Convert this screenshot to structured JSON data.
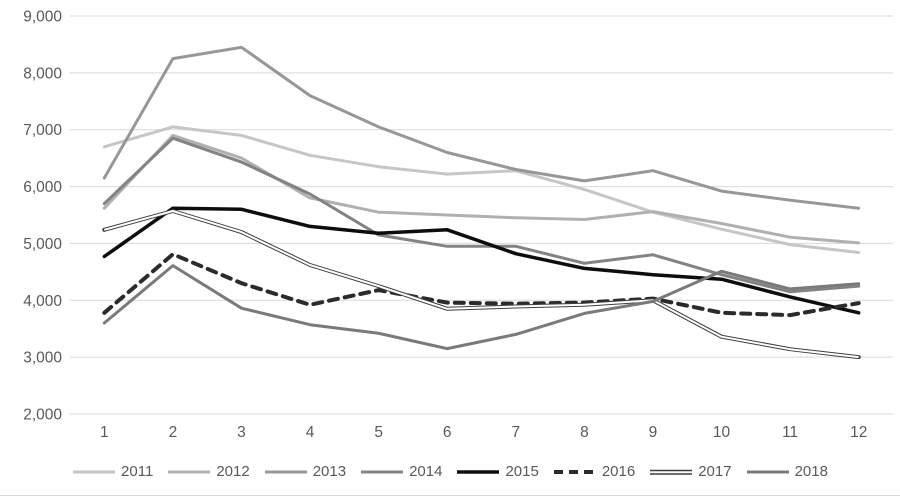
{
  "chart_data": {
    "type": "line",
    "title": "",
    "xlabel": "",
    "ylabel": "",
    "grid": "horizontal",
    "legend_position": "bottom",
    "x_categories": [
      "1",
      "2",
      "3",
      "4",
      "5",
      "6",
      "7",
      "8",
      "9",
      "10",
      "11",
      "12"
    ],
    "y_axis": {
      "min": 2000,
      "max": 9000,
      "step": 1000,
      "tick_labels": [
        "2,000",
        "3,000",
        "4,000",
        "5,000",
        "6,000",
        "7,000",
        "8,000",
        "9,000"
      ]
    },
    "series": [
      {
        "name": "2011",
        "color": "#c6c6c6",
        "style": "solid",
        "width": 3,
        "values": [
          6700,
          7050,
          6900,
          6550,
          6350,
          6220,
          6280,
          5950,
          5550,
          5250,
          4980,
          4840
        ]
      },
      {
        "name": "2012",
        "color": "#b0b0b0",
        "style": "solid",
        "width": 3,
        "values": [
          5620,
          6900,
          6500,
          5800,
          5550,
          5500,
          5450,
          5420,
          5560,
          5350,
          5110,
          5010
        ]
      },
      {
        "name": "2013",
        "color": "#979797",
        "style": "solid",
        "width": 3,
        "values": [
          6150,
          8250,
          8450,
          7600,
          7050,
          6600,
          6300,
          6100,
          6280,
          5920,
          5760,
          5620
        ]
      },
      {
        "name": "2014",
        "color": "#838383",
        "style": "solid",
        "width": 3,
        "values": [
          5700,
          6850,
          6430,
          5870,
          5150,
          4950,
          4950,
          4650,
          4800,
          4450,
          4150,
          4250
        ]
      },
      {
        "name": "2015",
        "color": "#0d0d0d",
        "style": "solid",
        "width": 3.5,
        "values": [
          4770,
          5620,
          5600,
          5300,
          5180,
          5240,
          4820,
          4560,
          4450,
          4370,
          4060,
          3780
        ]
      },
      {
        "name": "2016",
        "color": "#2b2b2b",
        "style": "dashed",
        "width": 4,
        "values": [
          3780,
          4810,
          4300,
          3920,
          4180,
          3960,
          3940,
          3960,
          4030,
          3780,
          3740,
          3950
        ]
      },
      {
        "name": "2017",
        "color": "#3f3f3f",
        "style": "double",
        "width": 4,
        "values": [
          5240,
          5570,
          5200,
          4620,
          4250,
          3850,
          3890,
          3920,
          4000,
          3360,
          3140,
          3000
        ]
      },
      {
        "name": "2018",
        "color": "#7a7a7a",
        "style": "solid",
        "width": 3,
        "values": [
          3600,
          4610,
          3860,
          3570,
          3420,
          3150,
          3400,
          3770,
          3980,
          4510,
          4200,
          4290
        ]
      }
    ]
  },
  "colors": {
    "gridline": "#d9d9d9",
    "tick_text": "#595959",
    "background": "#ffffff"
  }
}
